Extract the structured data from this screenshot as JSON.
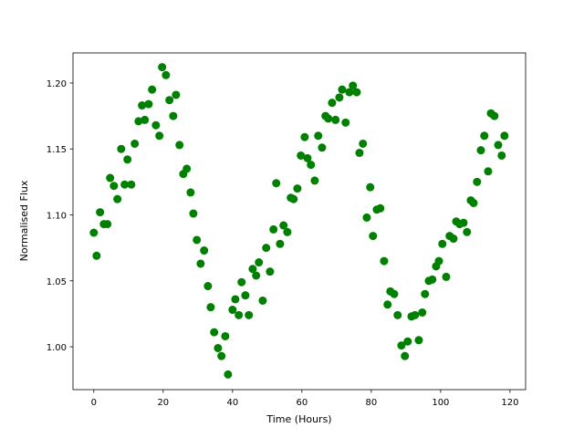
{
  "chart_data": {
    "type": "scatter",
    "xlabel": "Time (Hours)",
    "ylabel": "Normalised Flux",
    "color": "#008000",
    "xlim": [
      -6,
      124.5
    ],
    "ylim": [
      0.9675,
      1.2228
    ],
    "xticks": [
      0,
      20,
      40,
      60,
      80,
      100,
      120
    ],
    "yticks": [
      {
        "value": 1.0,
        "label": "1.00"
      },
      1.05,
      {
        "value": 1.1,
        "label": "1.10"
      },
      1.15,
      {
        "value": 1.2,
        "label": "1.20"
      }
    ],
    "x": [
      0,
      0.8,
      1.8,
      2.9,
      3.9,
      4.7,
      5.8,
      6.8,
      7.9,
      8.9,
      9.7,
      10.8,
      11.8,
      12.9,
      13.9,
      14.7,
      15.8,
      16.8,
      17.9,
      18.9,
      19.7,
      20.8,
      21.8,
      22.9,
      23.7,
      24.7,
      25.8,
      26.8,
      27.9,
      28.7,
      29.7,
      30.8,
      31.8,
      32.9,
      33.7,
      34.7,
      35.8,
      36.8,
      37.9,
      38.7,
      40,
      40.8,
      41.8,
      42.6,
      43.7,
      44.7,
      45.8,
      46.8,
      47.6,
      48.7,
      49.7,
      50.8,
      51.8,
      52.6,
      53.7,
      54.7,
      55.8,
      56.8,
      57.6,
      58.7,
      59.7,
      60.8,
      61.6,
      62.6,
      63.7,
      64.7,
      65.8,
      66.8,
      67.6,
      68.7,
      69.7,
      70.8,
      71.6,
      72.6,
      73.7,
      74.7,
      75.8,
      76.6,
      77.6,
      78.7,
      79.7,
      80.5,
      81.6,
      82.6,
      83.7,
      84.7,
      85.5,
      86.6,
      87.6,
      88.7,
      89.7,
      90.5,
      91.6,
      92.6,
      93.7,
      94.7,
      95.5,
      96.6,
      97.6,
      98.7,
      99.5,
      100.5,
      101.6,
      102.6,
      103.7,
      104.5,
      105.5,
      106.6,
      107.6,
      108.7,
      109.5,
      110.5,
      111.6,
      112.6,
      113.7,
      114.5,
      115.5,
      116.6,
      117.6,
      118.4
    ],
    "values": [
      1.0865,
      1.069,
      1.102,
      1.093,
      1.093,
      1.128,
      1.122,
      1.112,
      1.15,
      1.123,
      1.142,
      1.123,
      1.154,
      1.171,
      1.183,
      1.172,
      1.184,
      1.195,
      1.168,
      1.16,
      1.212,
      1.206,
      1.187,
      1.175,
      1.191,
      1.153,
      1.131,
      1.135,
      1.117,
      1.101,
      1.081,
      1.063,
      1.073,
      1.046,
      1.03,
      1.011,
      0.999,
      0.993,
      1.008,
      0.979,
      1.028,
      1.036,
      1.024,
      1.049,
      1.039,
      1.024,
      1.059,
      1.054,
      1.064,
      1.035,
      1.075,
      1.057,
      1.089,
      1.124,
      1.078,
      1.092,
      1.087,
      1.113,
      1.112,
      1.12,
      1.145,
      1.159,
      1.143,
      1.138,
      1.126,
      1.16,
      1.151,
      1.175,
      1.173,
      1.185,
      1.172,
      1.189,
      1.195,
      1.17,
      1.193,
      1.198,
      1.193,
      1.147,
      1.154,
      1.098,
      1.121,
      1.084,
      1.104,
      1.105,
      1.065,
      1.032,
      1.042,
      1.04,
      1.024,
      1.001,
      0.993,
      1.004,
      1.023,
      1.024,
      1.005,
      1.026,
      1.04,
      1.05,
      1.051,
      1.061,
      1.065,
      1.078,
      1.053,
      1.084,
      1.082,
      1.095,
      1.093,
      1.094,
      1.087,
      1.111,
      1.109,
      1.125,
      1.149,
      1.16,
      1.133,
      1.177,
      1.175,
      1.153,
      1.145,
      1.16
    ]
  }
}
